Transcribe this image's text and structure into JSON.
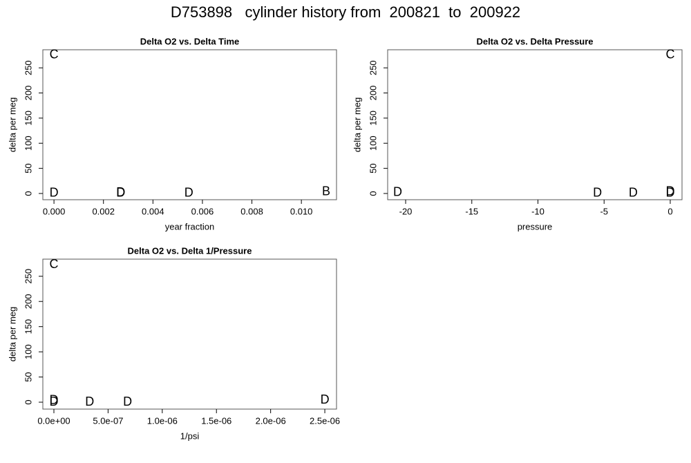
{
  "title": "D753898   cylinder history from  200821  to  200922",
  "chart_data": [
    {
      "type": "scatter",
      "title": "Delta O2 vs. Delta Time",
      "xlabel": "year fraction",
      "ylabel": "delta per meg",
      "x": [
        0,
        0,
        0.0027,
        0.0027,
        0.00545,
        0.011
      ],
      "y": [
        275,
        0,
        1,
        0,
        0,
        3
      ],
      "labels": [
        "C",
        "D",
        "D",
        "D",
        "D",
        "B"
      ],
      "colors": [
        "#22ee22",
        "#0a6e0a",
        "#22ee22",
        "#0a6e0a",
        "#0a6e0a",
        "#22ee22"
      ],
      "xlim": [
        -0.00045,
        0.01142
      ],
      "ylim": [
        -12.4,
        286
      ],
      "xticks": [
        {
          "value": 0,
          "label": "0.000"
        },
        {
          "value": 0.002,
          "label": "0.002"
        },
        {
          "value": 0.004,
          "label": "0.004"
        },
        {
          "value": 0.006,
          "label": "0.006"
        },
        {
          "value": 0.008,
          "label": "0.008"
        },
        {
          "value": 0.01,
          "label": "0.010"
        }
      ],
      "yticks": [
        0,
        50,
        100,
        150,
        200,
        250
      ]
    },
    {
      "type": "scatter",
      "title": "Delta O2 vs. Delta Pressure",
      "xlabel": "pressure",
      "ylabel": "delta per meg",
      "x": [
        0,
        -20.6,
        -5.5,
        -2.8,
        0,
        0
      ],
      "y": [
        275,
        2,
        0,
        0,
        3,
        0
      ],
      "labels": [
        "C",
        "D",
        "D",
        "D",
        "D",
        "D"
      ],
      "colors": [
        "#22ee22",
        "#0a6e0a",
        "#0a6e0a",
        "#0a6e0a",
        "#22ee22",
        "#0a6e0a"
      ],
      "xlim": [
        -21.36,
        0.89
      ],
      "ylim": [
        -12.4,
        286
      ],
      "xticks": [
        -20,
        -15,
        -10,
        -5,
        0
      ],
      "yticks": [
        0,
        50,
        100,
        150,
        200,
        250
      ]
    },
    {
      "type": "scatter",
      "title": "Delta O2 vs. Delta 1/Pressure",
      "xlabel": "1/psi",
      "ylabel": "delta per meg",
      "x": [
        0,
        0,
        0,
        3.3e-07,
        6.8e-07,
        2.5e-06
      ],
      "y": [
        273,
        3,
        0,
        0,
        0,
        4
      ],
      "labels": [
        "C",
        "D",
        "D",
        "D",
        "D",
        "D"
      ],
      "colors": [
        "#22ee22",
        "#22ee22",
        "#0a6e0a",
        "#0a6e0a",
        "#0a6e0a",
        "#0a6e0a"
      ],
      "xlim": [
        -1.02e-07,
        2.608e-06
      ],
      "ylim": [
        -13.7,
        284
      ],
      "xticks": [
        {
          "value": 0,
          "label": "0.0e+00"
        },
        {
          "value": 5e-07,
          "label": "5.0e-07"
        },
        {
          "value": 1e-06,
          "label": "1.0e-06"
        },
        {
          "value": 1.5e-06,
          "label": "1.5e-06"
        },
        {
          "value": 2e-06,
          "label": "2.0e-06"
        },
        {
          "value": 2.5e-06,
          "label": "2.5e-06"
        }
      ],
      "yticks": [
        0,
        50,
        100,
        150,
        200,
        250
      ]
    }
  ]
}
